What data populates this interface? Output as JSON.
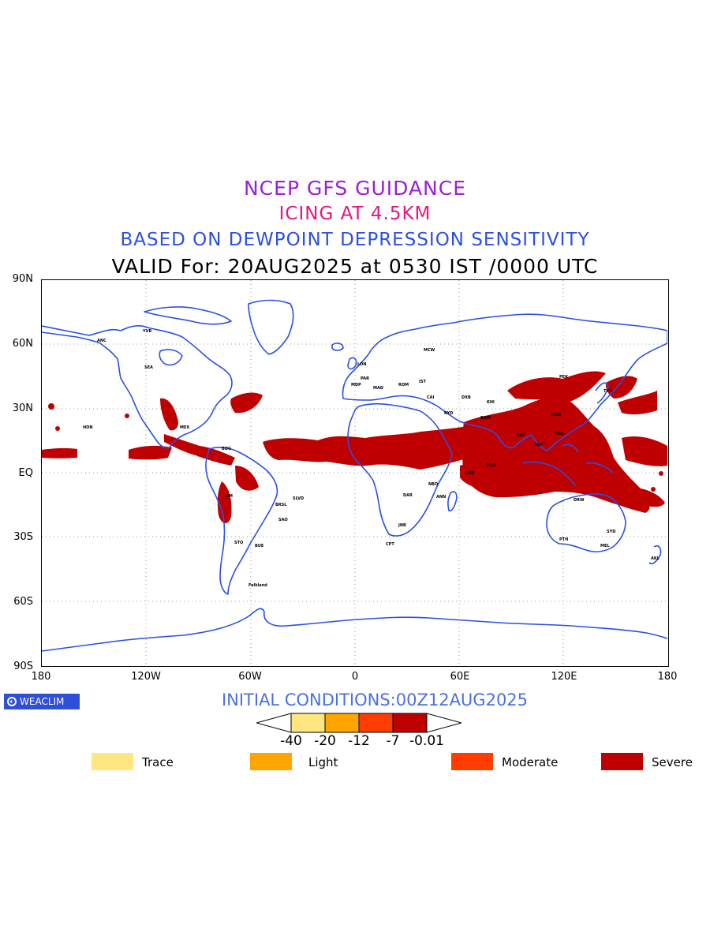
{
  "titles": {
    "line1": "NCEP GFS GUIDANCE",
    "line2": "ICING AT 4.5KM",
    "line3": "BASED ON DEWPOINT DEPRESSION SENSITIVITY",
    "line4": "VALID For: 20AUG2025 at 0530 IST /0000 UTC"
  },
  "axes": {
    "lat_ticks": [
      "90N",
      "60N",
      "30N",
      "EQ",
      "30S",
      "60S",
      "90S"
    ],
    "lon_ticks": [
      "180",
      "120W",
      "60W",
      "0",
      "60E",
      "120E",
      "180"
    ]
  },
  "logo": {
    "text": "WEACLIM",
    "icon": "weaclim-logo-icon"
  },
  "initial_conditions": "INITIAL CONDITIONS:00Z12AUG2025",
  "colorbar": {
    "labels": [
      "-40",
      "-20",
      "-12",
      "-7",
      "-0.01"
    ],
    "colors": [
      "#ffe680",
      "#ffa500",
      "#ff3c00",
      "#bf0000"
    ]
  },
  "legend": [
    {
      "label": "Trace",
      "color": "#ffe680"
    },
    {
      "label": "Light",
      "color": "#ffa500"
    },
    {
      "label": "Moderate",
      "color": "#ff3c00"
    },
    {
      "label": "Severe",
      "color": "#bf0000"
    }
  ],
  "colors": {
    "coastline": "#2b4fe6",
    "icing_severe": "#bf0000"
  },
  "station_labels": [
    "ANC",
    "YVR",
    "SEA",
    "HON",
    "MEX",
    "BOG",
    "LIM",
    "BRSL",
    "SLVD",
    "SAO",
    "STO",
    "BUE",
    "Falkland",
    "MDP",
    "LON",
    "PAR",
    "MAD",
    "ROM",
    "IST",
    "CAI",
    "RYD",
    "MCW",
    "DXB",
    "KHI",
    "BOM",
    "MLD",
    "CMB",
    "NBO",
    "DAR",
    "JNB",
    "CPT",
    "ANN",
    "BKK",
    "SGP",
    "MNL",
    "HKG",
    "PEK",
    "TYO",
    "DRW",
    "PTH",
    "SYD",
    "MEL",
    "AKL"
  ]
}
